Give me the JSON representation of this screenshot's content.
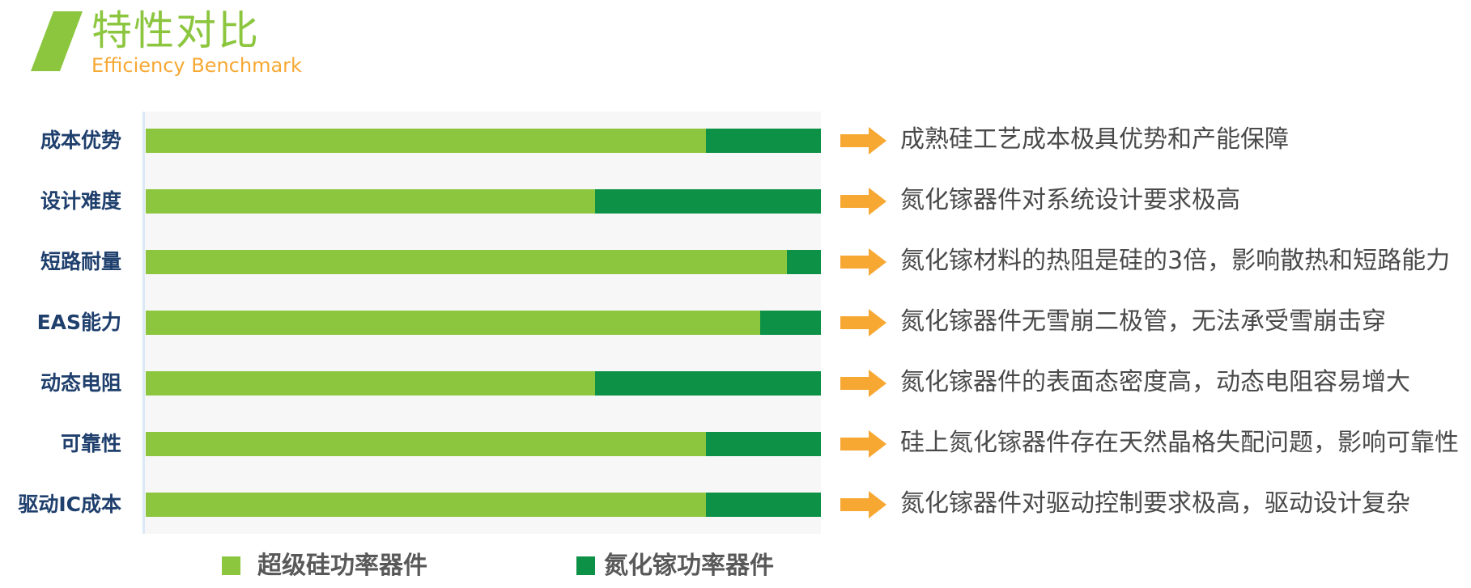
{
  "header": {
    "title": "特性对比",
    "subtitle": "Efficiency Benchmark"
  },
  "colors": {
    "si": "#8cc63f",
    "gan": "#0c9146",
    "accent_orange": "#f7a833"
  },
  "chart_data": {
    "type": "bar",
    "orientation": "horizontal",
    "stacked": true,
    "categories": [
      "成本优势",
      "设计难度",
      "短路耐量",
      "EAS能力",
      "动态电阻",
      "可靠性",
      "驱动IC成本"
    ],
    "series": [
      {
        "name": "超级硅功率器件",
        "values": [
          83,
          66.5,
          95,
          91,
          66.5,
          83,
          83
        ]
      },
      {
        "name": "氮化镓功率器件",
        "values": [
          17,
          33.5,
          5,
          9,
          33.5,
          17,
          17
        ]
      }
    ],
    "xlim": [
      0,
      100
    ],
    "grid": false,
    "legend": "bottom",
    "annotations": [
      "成熟硅工艺成本极具优势和产能保障",
      "氮化镓器件对系统设计要求极高",
      "氮化镓材料的热阻是硅的3倍，影响散热和短路能力",
      "氮化镓器件无雪崩二极管，无法承受雪崩击穿",
      "氮化镓器件的表面态密度高，动态电阻容易增大",
      "硅上氮化镓器件存在天然晶格失配问题，影响可靠性",
      "氮化镓器件对驱动控制要求极高，驱动设计复杂"
    ]
  }
}
